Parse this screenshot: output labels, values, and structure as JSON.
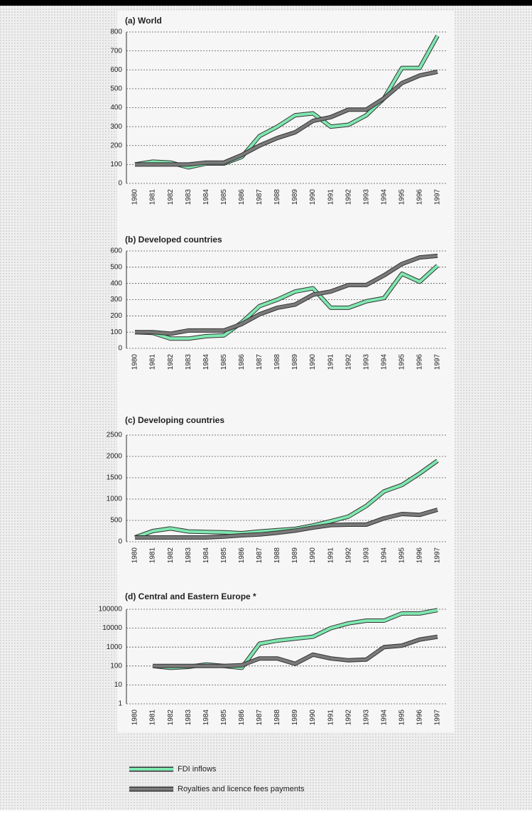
{
  "chart_data": [
    {
      "type": "line",
      "title": "(a) World",
      "categories": [
        "1980",
        "1981",
        "1982",
        "1983",
        "1984",
        "1985",
        "1986",
        "1987",
        "1988",
        "1989",
        "1990",
        "1991",
        "1992",
        "1993",
        "1994",
        "1995",
        "1996",
        "1997"
      ],
      "series": [
        {
          "name": "FDI inflows",
          "color": "#7fe8b0",
          "values": [
            100,
            115,
            110,
            85,
            105,
            105,
            140,
            250,
            300,
            360,
            370,
            300,
            310,
            360,
            450,
            610,
            610,
            780
          ]
        },
        {
          "name": "Royalties and licence fees payments",
          "color": "#7a7a7a",
          "values": [
            100,
            100,
            100,
            100,
            110,
            110,
            150,
            200,
            240,
            270,
            330,
            350,
            390,
            390,
            450,
            530,
            570,
            590
          ]
        }
      ],
      "ylim": [
        0,
        800
      ],
      "yticks": [
        0,
        100,
        200,
        300,
        400,
        500,
        600,
        700,
        800
      ],
      "grid": true
    },
    {
      "type": "line",
      "title": "(b) Developed countries",
      "categories": [
        "1980",
        "1981",
        "1982",
        "1983",
        "1984",
        "1985",
        "1986",
        "1987",
        "1988",
        "1989",
        "1990",
        "1991",
        "1992",
        "1993",
        "1994",
        "1995",
        "1996",
        "1997"
      ],
      "series": [
        {
          "name": "FDI inflows",
          "color": "#7fe8b0",
          "values": [
            100,
            95,
            60,
            60,
            75,
            80,
            160,
            260,
            300,
            350,
            370,
            250,
            250,
            290,
            310,
            460,
            410,
            510
          ]
        },
        {
          "name": "Royalties and licence fees payments",
          "color": "#7a7a7a",
          "values": [
            100,
            100,
            90,
            110,
            110,
            110,
            150,
            210,
            250,
            270,
            330,
            350,
            390,
            390,
            450,
            520,
            560,
            570
          ]
        }
      ],
      "ylim": [
        0,
        600
      ],
      "yticks": [
        0,
        100,
        200,
        300,
        400,
        500,
        600
      ],
      "grid": true
    },
    {
      "type": "line",
      "title": "(c) Developing countries",
      "categories": [
        "1980",
        "1981",
        "1982",
        "1983",
        "1984",
        "1985",
        "1986",
        "1987",
        "1988",
        "1989",
        "1990",
        "1991",
        "1992",
        "1993",
        "1994",
        "1995",
        "1996",
        "1997"
      ],
      "series": [
        {
          "name": "FDI inflows",
          "color": "#7fe8b0",
          "values": [
            100,
            250,
            310,
            240,
            230,
            220,
            200,
            240,
            270,
            300,
            380,
            480,
            590,
            840,
            1180,
            1330,
            1600,
            1900
          ]
        },
        {
          "name": "Royalties and licence fees payments",
          "color": "#7a7a7a",
          "values": [
            100,
            100,
            100,
            100,
            100,
            120,
            150,
            170,
            210,
            260,
            330,
            390,
            400,
            400,
            550,
            650,
            630,
            750
          ]
        }
      ],
      "ylim": [
        0,
        2500
      ],
      "yticks": [
        0,
        500,
        1000,
        1500,
        2000,
        2500
      ],
      "grid": true
    },
    {
      "type": "line",
      "title": "(d) Central and Eastern Europe *",
      "categories": [
        "1980",
        "1981",
        "1982",
        "1983",
        "1984",
        "1985",
        "1986",
        "1987",
        "1988",
        "1989",
        "1990",
        "1991",
        "1992",
        "1993",
        "1994",
        "1995",
        "1996",
        "1997"
      ],
      "series": [
        {
          "name": "FDI inflows",
          "color": "#7fe8b0",
          "values": [
            null,
            100,
            80,
            90,
            120,
            100,
            80,
            1500,
            2200,
            2800,
            3500,
            10000,
            18000,
            25000,
            25000,
            60000,
            60000,
            90000
          ]
        },
        {
          "name": "Royalties and licence fees payments",
          "color": "#7a7a7a",
          "values": [
            null,
            100,
            100,
            100,
            100,
            100,
            110,
            250,
            250,
            130,
            400,
            250,
            200,
            220,
            1000,
            1200,
            2500,
            3500
          ]
        }
      ],
      "ylim": [
        1,
        100000
      ],
      "yticks": [
        1,
        10,
        100,
        1000,
        10000,
        100000
      ],
      "log": true,
      "grid": true
    }
  ]
}
